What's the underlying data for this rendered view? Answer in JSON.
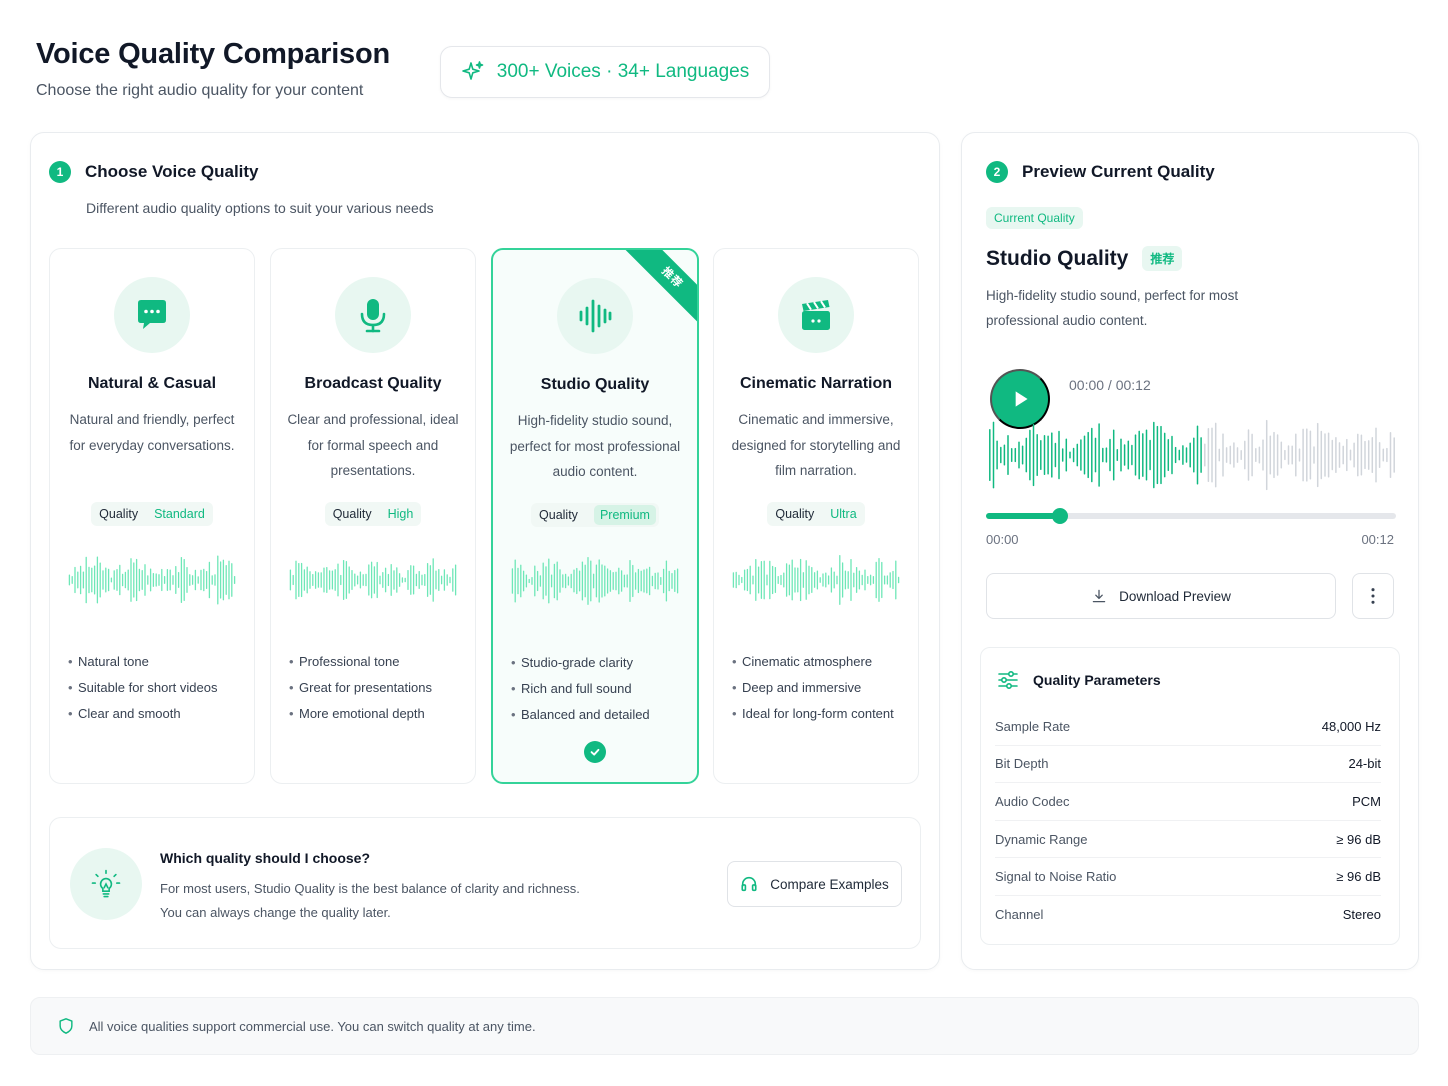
{
  "header": {
    "title": "Voice Quality Comparison",
    "subtitle": "Choose the right audio quality for your content",
    "stats": "300+ Voices · 34+ Languages"
  },
  "left": {
    "step_num": "1",
    "step_title": "Choose Voice Quality",
    "step_desc": "Different audio quality options to suit your various needs",
    "cards": [
      {
        "title": "Natural & Casual",
        "desc": "Natural and friendly, perfect for everyday conversations.",
        "quality_key": "Quality",
        "quality_value": "Standard",
        "features": [
          "Natural tone",
          "Suitable for short videos",
          "Clear and smooth"
        ],
        "icon": "chat-bubble-icon"
      },
      {
        "title": "Broadcast Quality",
        "desc": "Clear and professional, ideal for formal speech and presentations.",
        "quality_key": "Quality",
        "quality_value": "High",
        "features": [
          "Professional tone",
          "Great for presentations",
          "More emotional depth"
        ],
        "icon": "microphone-icon"
      },
      {
        "title": "Studio Quality",
        "desc": "High-fidelity studio sound, perfect for most professional audio content.",
        "quality_key": "Quality",
        "quality_value": "Premium",
        "features": [
          "Studio-grade clarity",
          "Rich and full sound",
          "Balanced and detailed"
        ],
        "icon": "audio-waveform-icon",
        "ribbon": "推荐",
        "selected": true
      },
      {
        "title": "Cinematic Narration",
        "desc": "Cinematic and immersive, designed for storytelling and film narration.",
        "quality_key": "Quality",
        "quality_value": "Ultra",
        "features": [
          "Cinematic atmosphere",
          "Deep and immersive",
          "Ideal for long-form content"
        ],
        "icon": "clapperboard-icon"
      }
    ],
    "tip": {
      "title": "Which quality should I choose?",
      "line1": "For most users, Studio Quality is the best balance of clarity and richness.",
      "line2": "You can always change the quality later.",
      "button": "Compare Examples"
    }
  },
  "right": {
    "step_num": "2",
    "step_title": "Preview Current Quality",
    "current_badge": "Current Quality",
    "title": "Studio Quality",
    "rec_badge": "推荐",
    "desc": "High-fidelity studio sound, perfect for most professional audio content.",
    "time_readout": "00:00 / 00:12",
    "time_start": "00:00",
    "time_end": "00:12",
    "progress_fraction": 0.18,
    "download_label": "Download Preview",
    "params_title": "Quality Parameters",
    "params": [
      {
        "key": "Sample Rate",
        "value": "48,000 Hz"
      },
      {
        "key": "Bit Depth",
        "value": "24-bit"
      },
      {
        "key": "Audio Codec",
        "value": "PCM"
      },
      {
        "key": "Dynamic Range",
        "value": "≥ 96 dB"
      },
      {
        "key": "Signal to Noise Ratio",
        "value": "≥ 96 dB"
      },
      {
        "key": "Channel",
        "value": "Stereo"
      }
    ]
  },
  "footer": {
    "text": "All voice qualities support commercial use. You can switch quality at any time."
  },
  "colors": {
    "accent": "#10b981",
    "accent_light": "#e8f7f1",
    "wave_inactive": "#d1d5db"
  }
}
